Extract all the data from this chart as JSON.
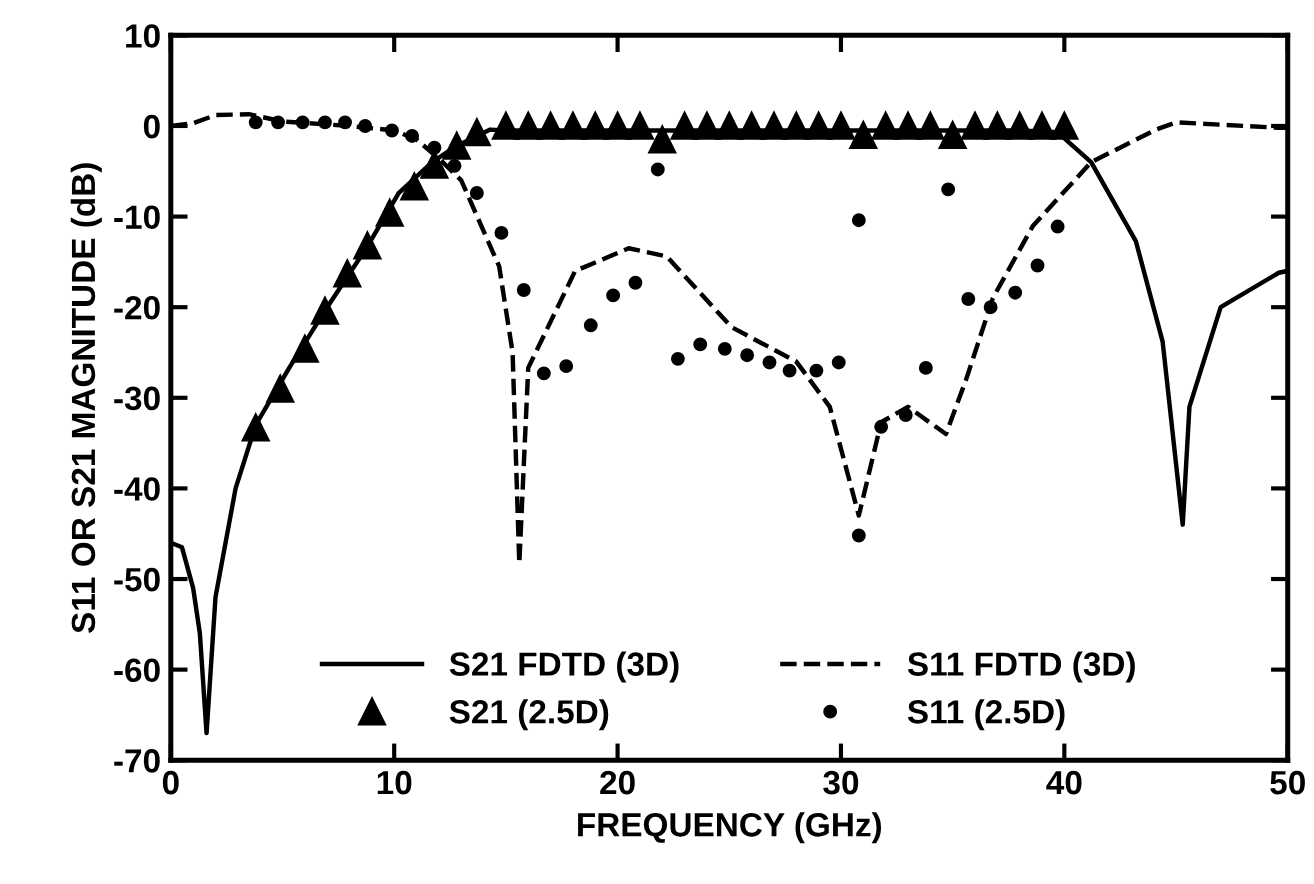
{
  "chart_data": {
    "type": "line",
    "xlabel": "FREQUENCY (GHz)",
    "ylabel": "S11 OR S21 MAGNITUDE (dB)",
    "xlim": [
      0,
      50
    ],
    "ylim": [
      -70,
      10
    ],
    "xticks": [
      0,
      10,
      20,
      30,
      40,
      50
    ],
    "yticks": [
      -70,
      -60,
      -50,
      -40,
      -30,
      -20,
      -10,
      0,
      10
    ],
    "grid": false,
    "legend": "bottom",
    "series": [
      {
        "name": "S21 FDTD (3D)",
        "line_style": "solid",
        "marker": "none",
        "color": "#000000",
        "x": [
          0,
          0.5,
          1.0,
          1.3,
          1.6,
          2.0,
          2.9,
          3.8,
          5.3,
          7.0,
          8.8,
          10.2,
          11.7,
          12.8,
          14.3,
          15,
          20,
          30,
          38,
          39.7,
          41.2,
          43.2,
          44.4,
          45.3,
          45.6,
          47,
          49.6,
          50
        ],
        "values": [
          -46,
          -46.5,
          -51,
          -56,
          -67,
          -52,
          -40,
          -33,
          -26.7,
          -20,
          -13.3,
          -7.4,
          -4,
          -2.2,
          -0.4,
          -0.5,
          -0.5,
          -0.5,
          -0.5,
          -0.7,
          -4,
          -12.7,
          -23.8,
          -44,
          -31,
          -20,
          -16.2,
          -16
        ]
      },
      {
        "name": "S21 (2.5D)",
        "type": "scatter",
        "marker": "triangle",
        "color": "#000000",
        "x": [
          3.8,
          4.9,
          6.0,
          6.9,
          7.9,
          8.8,
          9.8,
          10.9,
          11.8,
          12.8,
          13.7,
          15,
          16,
          17,
          18,
          19,
          20,
          21,
          22,
          23,
          24,
          25,
          26,
          27,
          28,
          29,
          30,
          31,
          32,
          33,
          34,
          35,
          36,
          37,
          38,
          39,
          40
        ],
        "values": [
          -33.3,
          -29,
          -24.6,
          -20.4,
          -16.3,
          -13.2,
          -9.6,
          -6.7,
          -4.3,
          -2.2,
          -0.7,
          0,
          0,
          0,
          0,
          0,
          0,
          0,
          -1.5,
          0,
          0,
          0,
          0,
          0,
          0,
          0,
          0,
          -1,
          0,
          0,
          0,
          -1,
          0,
          0,
          0,
          0,
          0
        ]
      },
      {
        "name": "S11 FDTD (3D)",
        "line_style": "dashed",
        "marker": "none",
        "color": "#000000",
        "x": [
          0,
          1,
          2,
          3.5,
          5,
          8,
          10,
          11,
          12.05,
          13,
          14.7,
          15.3,
          15.6,
          16.0,
          18.1,
          20.5,
          22.2,
          25.1,
          28,
          29.5,
          30.8,
          31.8,
          33,
          34.7,
          35.6,
          36.8,
          38.6,
          41.2,
          44.1,
          45,
          49.6,
          50
        ],
        "values": [
          0,
          0.3,
          1.2,
          1.3,
          0.5,
          0,
          -0.5,
          -1.5,
          -3.7,
          -6,
          -15.5,
          -25,
          -48.3,
          -26.7,
          -16,
          -13.5,
          -14.4,
          -22.2,
          -26,
          -31,
          -43,
          -32.7,
          -31,
          -34,
          -28,
          -19,
          -11,
          -4,
          -0.4,
          0.4,
          -0.2,
          -0.2
        ]
      },
      {
        "name": "S11 (2.5D)",
        "type": "scatter",
        "marker": "circle",
        "color": "#000000",
        "x": [
          3.8,
          4.8,
          5.9,
          6.9,
          7.8,
          8.7,
          9.9,
          10.8,
          11.8,
          12.7,
          13.7,
          14.8,
          15.8,
          16.7,
          17.7,
          18.8,
          19.8,
          20.8,
          21.8,
          22.7,
          23.7,
          24.8,
          25.8,
          26.8,
          27.7,
          28.9,
          29.9,
          30.8,
          30.8,
          31.8,
          32.9,
          33.8,
          34.8,
          35.7,
          36.7,
          37.8,
          38.8,
          39.7
        ],
        "values": [
          0.4,
          0.4,
          0.4,
          0.4,
          0.4,
          0,
          -0.5,
          -1.1,
          -2.4,
          -4.4,
          -7.4,
          -11.8,
          -18.1,
          -27.3,
          -26.5,
          -22,
          -18.7,
          -17.3,
          -4.8,
          -25.7,
          -24.1,
          -24.6,
          -25.3,
          -26.1,
          -27,
          -27,
          -26.1,
          -10.4,
          -45.2,
          -33.2,
          -31.9,
          -26.7,
          -7,
          -19.1,
          -20,
          -18.4,
          -15.4,
          -11.1
        ]
      }
    ]
  }
}
